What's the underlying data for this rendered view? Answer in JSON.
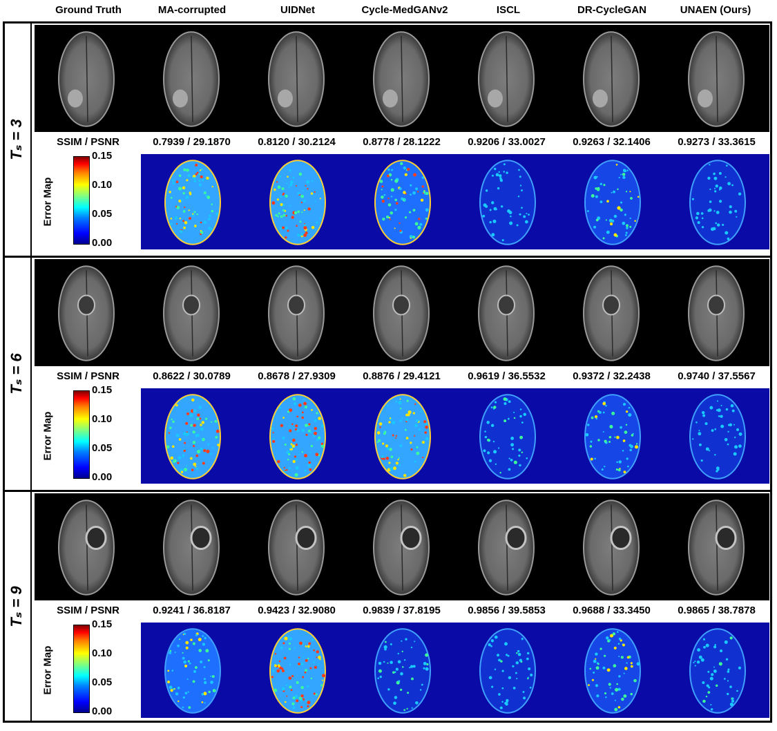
{
  "columns": [
    "Ground Truth",
    "MA-corrupted",
    "UIDNet",
    "Cycle-MedGANv2",
    "ISCL",
    "DR-CycleGAN",
    "UNAEN (Ours)"
  ],
  "metric_label": "SSIM / PSNR",
  "colorbar": {
    "title": "Error Map",
    "ticks": [
      "0.15",
      "0.10",
      "0.05",
      "0.00"
    ]
  },
  "colors": {
    "frame": "#000000",
    "error_background": "#0a0aa6"
  },
  "blocks": [
    {
      "label": "Tₛ = 3",
      "metrics": [
        "0.7939 / 29.1870",
        "0.8120 / 30.2124",
        "0.8778 / 28.1222",
        "0.9206 / 33.0027",
        "0.9263 / 32.1406",
        "0.9273 / 33.3615"
      ]
    },
    {
      "label": "Tₛ = 6",
      "metrics": [
        "0.8622 / 30.0789",
        "0.8678 / 27.9309",
        "0.8876 / 29.4121",
        "0.9619 / 36.5532",
        "0.9372 / 32.2438",
        "0.9740 / 37.5567"
      ]
    },
    {
      "label": "Tₛ = 9",
      "metrics": [
        "0.9241 / 36.8187",
        "0.9423 / 32.9080",
        "0.9839 / 37.8195",
        "0.9856 / 39.5853",
        "0.9688 / 33.3450",
        "0.9865 / 38.7878"
      ]
    }
  ]
}
